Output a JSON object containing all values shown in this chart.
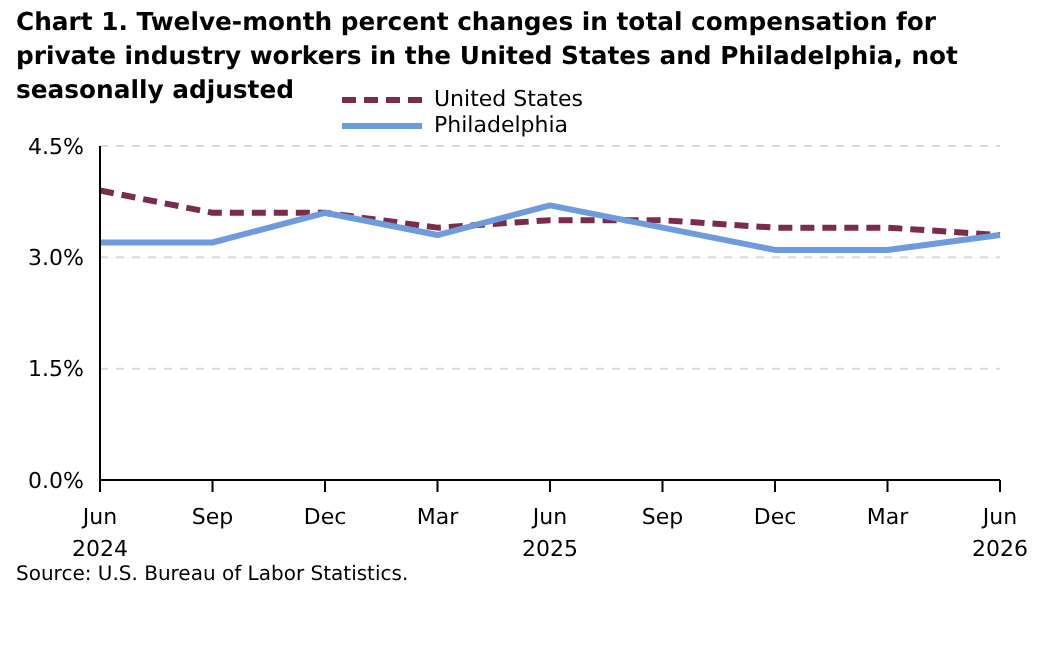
{
  "chart_data": {
    "type": "line",
    "title": "Chart 1. Twelve-month percent changes in total compensation for private industry workers in the United States and Philadelphia, not seasonally adjusted",
    "categories": [
      "Jun 2024",
      "Sep",
      "Dec",
      "Mar",
      "Jun 2025",
      "Sep",
      "Dec",
      "Mar",
      "Jun 2026"
    ],
    "series": [
      {
        "name": "United States",
        "color": "#7b2c4e",
        "line_style": "dashed",
        "values": [
          3.9,
          3.6,
          3.6,
          3.4,
          3.5,
          3.5,
          3.4,
          3.4,
          3.3
        ]
      },
      {
        "name": "Philadelphia",
        "color": "#6d9bdc",
        "line_style": "solid",
        "values": [
          3.2,
          3.2,
          3.6,
          3.3,
          3.7,
          3.4,
          3.1,
          3.1,
          3.3
        ]
      }
    ],
    "ylim": [
      0,
      4.5
    ],
    "yticks": [
      {
        "value": 0,
        "label": "0.0%"
      },
      {
        "value": 1.5,
        "label": "1.5%"
      },
      {
        "value": 3,
        "label": "3.0%"
      },
      {
        "value": 4.5,
        "label": "4.5%"
      }
    ],
    "grid": "y",
    "legend": "top",
    "marker": "none",
    "annotations": [
      "Source: U.S. Bureau of Labor Statistics."
    ]
  }
}
